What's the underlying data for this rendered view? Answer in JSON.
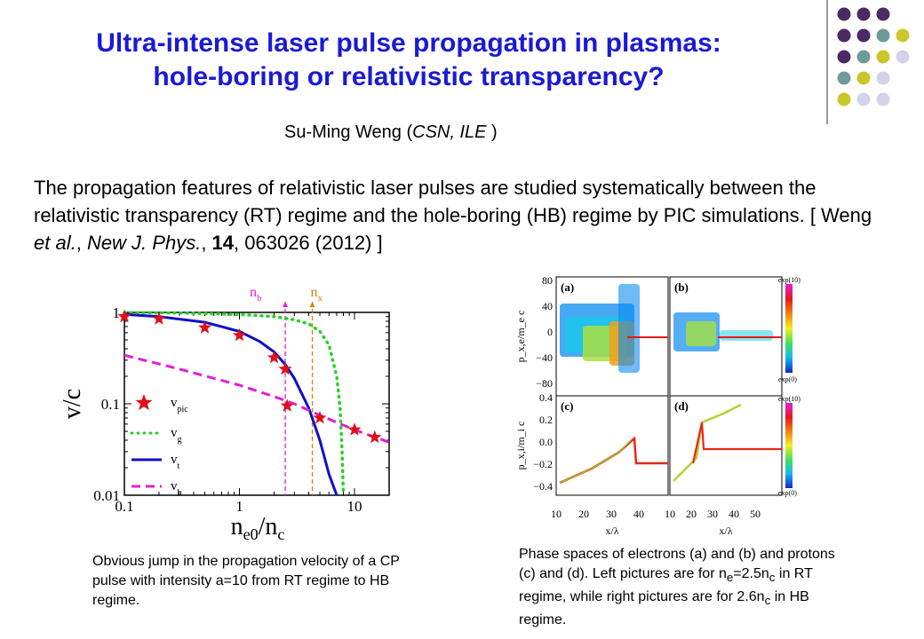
{
  "title": {
    "line1": "Ultra-intense laser pulse propagation in plasmas:",
    "line2": "hole-boring or relativistic transparency?"
  },
  "author": {
    "name": "Su-Ming Weng (",
    "affil1": "CSN, ILE",
    "close": " )"
  },
  "abstract": {
    "text": "The propagation features of relativistic laser pulses are studied systematically between the relativistic transparency (RT) regime and the hole-boring (HB) regime by PIC simulations. [ Weng ",
    "etal": "et al.",
    "sep1": ", ",
    "journal": "New J. Phys.",
    "sep2": ", ",
    "volume": "14",
    "rest": ", 063026 (2012) ]"
  },
  "colors": {
    "title": "#1a1ad6",
    "dot_purple": "#4b2a63",
    "dot_teal": "#6e9a97",
    "dot_olive": "#c9c72a",
    "dot_lavender": "#d2d2ea"
  },
  "chart_data": [
    {
      "type": "scatter",
      "xlabel_main": "n",
      "xlabel_sub": "e0",
      "xlabel_tail": "/n",
      "xlabel_sub2": "c",
      "ylabel": "v/c",
      "xscale": "log",
      "yscale": "log",
      "xlim": [
        0.1,
        20
      ],
      "ylim": [
        0.01,
        1
      ],
      "xticks": [
        "0.1",
        "1",
        "10"
      ],
      "yticks": [
        "1",
        "0.1",
        "0.01"
      ],
      "annotations": [
        {
          "text": "n",
          "sub": "b",
          "x": 2.5
        },
        {
          "text": "n",
          "sub": "x",
          "x": 4.3
        }
      ],
      "series": [
        {
          "name": "v",
          "sub": "pic",
          "style": "star",
          "color": "#e0101a",
          "x": [
            0.1,
            0.2,
            0.5,
            1.0,
            2.0,
            2.5,
            2.6,
            5.0,
            10.0,
            15.0
          ],
          "y": [
            0.9,
            0.85,
            0.68,
            0.56,
            0.32,
            0.24,
            0.095,
            0.07,
            0.052,
            0.043
          ]
        },
        {
          "name": "v",
          "sub": "g",
          "style": "dotted",
          "color": "#28d028",
          "x": [
            0.1,
            0.3,
            1.0,
            2.0,
            3.0,
            4.0,
            5.0,
            6.0,
            7.0,
            7.5,
            7.8,
            8.0
          ],
          "y": [
            0.995,
            0.985,
            0.95,
            0.9,
            0.83,
            0.75,
            0.62,
            0.44,
            0.2,
            0.09,
            0.03,
            0.01
          ]
        },
        {
          "name": "v",
          "sub": "t",
          "style": "solid",
          "color": "#1010c8",
          "x": [
            0.1,
            0.2,
            0.5,
            1.0,
            1.5,
            2.0,
            2.5,
            3.0,
            4.0,
            5.0,
            6.0,
            7.0
          ],
          "y": [
            0.95,
            0.9,
            0.78,
            0.62,
            0.48,
            0.37,
            0.27,
            0.19,
            0.09,
            0.04,
            0.017,
            0.01
          ]
        },
        {
          "name": "v",
          "sub": "b",
          "style": "dashed",
          "color": "#e020d0",
          "x": [
            0.1,
            0.3,
            1.0,
            2.0,
            3.0,
            5.0,
            10.0,
            20.0
          ],
          "y": [
            0.34,
            0.24,
            0.16,
            0.12,
            0.1,
            0.075,
            0.052,
            0.038
          ]
        }
      ]
    },
    {
      "type": "heatmap",
      "panels": [
        "(a)",
        "(b)",
        "(c)",
        "(d)"
      ],
      "top_ylabel": "p_x,e/m_e c",
      "top_yticks": [
        "80",
        "40",
        "0",
        "−40",
        "−80"
      ],
      "bottom_ylabel": "p_x,i/m_i c",
      "bottom_yticks": [
        "0.4",
        "0.2",
        "0.0",
        "−0.2",
        "−0.4"
      ],
      "left_xticks": [
        "10",
        "20",
        "30",
        "40"
      ],
      "right_xticks": [
        "10",
        "20",
        "30",
        "40",
        "50"
      ],
      "xlabel": "x/λ",
      "colorbar_max": "exp(10)",
      "colorbar_min": "exp(0)"
    }
  ],
  "captions": {
    "left": "Obvious jump in the propagation velocity of a CP pulse with intensity a=10 from RT regime to HB regime.",
    "right_a": "Phase spaces of electrons (a) and (b) and protons (c) and (d). Left pictures are for n",
    "right_sub1": "e",
    "right_b": "=2.5n",
    "right_sub2": "c",
    "right_c": " in RT regime, while right pictures are for 2.6n",
    "right_sub3": "c",
    "right_d": " in HB regime."
  }
}
